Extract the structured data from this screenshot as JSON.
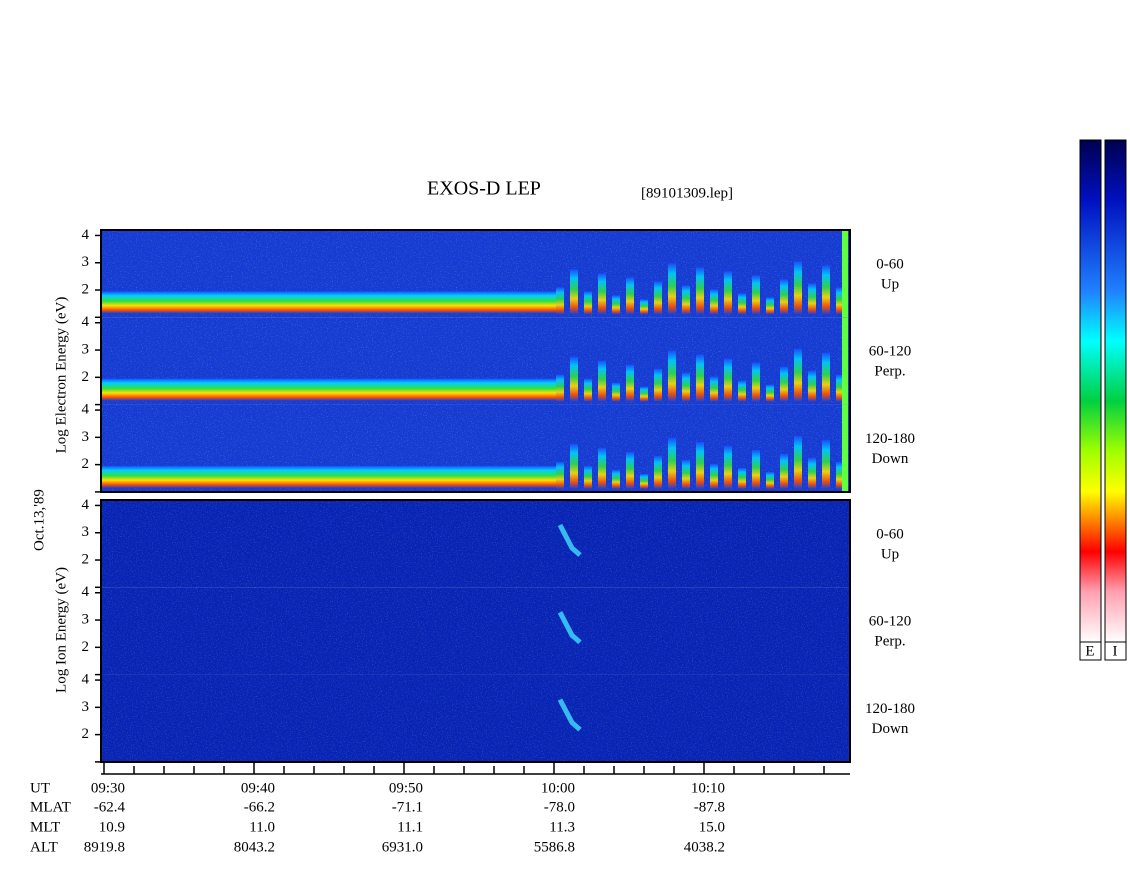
{
  "title": "EXOS-D LEP",
  "file": "[89101309.lep]",
  "date": "Oct.13,'89",
  "energy_ticks": [
    4,
    3,
    2
  ],
  "electron": {
    "axis_label": "Log Electron Energy (eV)",
    "channels": [
      {
        "range": "0-60",
        "direction": "Up"
      },
      {
        "range": "60-120",
        "direction": "Perp."
      },
      {
        "range": "120-180",
        "direction": "Down"
      }
    ]
  },
  "ion": {
    "axis_label": "Log Ion Energy (eV)",
    "channels": [
      {
        "range": "0-60",
        "direction": "Up"
      },
      {
        "range": "60-120",
        "direction": "Perp."
      },
      {
        "range": "120-180",
        "direction": "Down"
      }
    ]
  },
  "ephemeris": [
    {
      "label": "UT",
      "values": [
        "09:30",
        "09:40",
        "09:50",
        "10:00",
        "10:10"
      ]
    },
    {
      "label": "MLAT",
      "values": [
        "-62.4",
        "-66.2",
        "-71.1",
        "-78.0",
        "-87.8"
      ]
    },
    {
      "label": "MLT",
      "values": [
        "10.9",
        "11.0",
        "11.1",
        "11.3",
        "15.0"
      ]
    },
    {
      "label": "ALT",
      "values": [
        "8919.8",
        "8043.2",
        "6931.0",
        "5586.8",
        "4038.2"
      ]
    }
  ],
  "colorbar_labels": [
    "E",
    "I"
  ]
}
